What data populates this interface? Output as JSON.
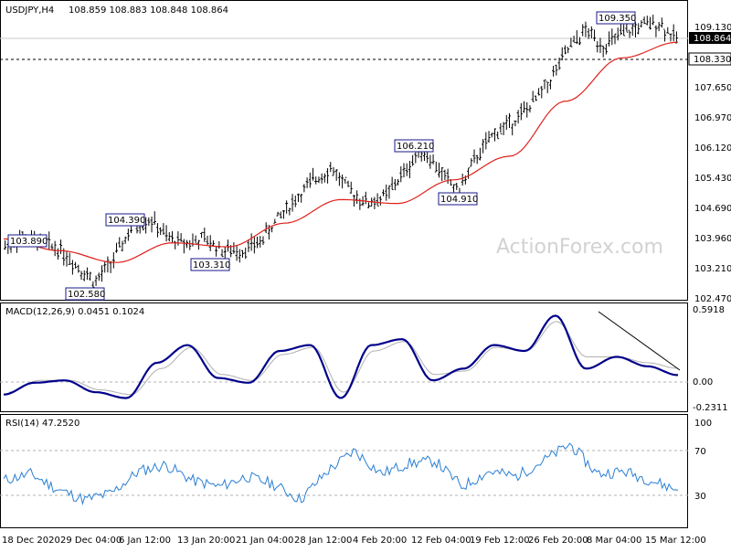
{
  "header": {
    "symbol": "USDJPY,H4",
    "ohlc": "108.859 108.883 108.848 108.864"
  },
  "watermark": "ActionForex.com",
  "colors": {
    "candle": "#000000",
    "ma": "#e0201b",
    "macd_line": "#00008b",
    "macd_signal": "#b0b0b0",
    "rsi": "#2a7fd4",
    "label_border": "#1a1a8c",
    "grid": "#c8c8c8",
    "axis_text": "#000000",
    "watermark": "#d2d2d2"
  },
  "price_panel": {
    "y_ticks": [
      "109.130",
      "107.650",
      "106.970",
      "106.120",
      "105.430",
      "104.690",
      "103.960",
      "103.210",
      "102.470"
    ],
    "y_tick_values": [
      109.13,
      107.65,
      106.97,
      106.12,
      105.43,
      104.69,
      103.96,
      103.21,
      102.47
    ],
    "current_price_label": "108.864",
    "current_price": 108.864,
    "dashed_level_label": "108.330",
    "dashed_level": 108.33,
    "annotations": [
      {
        "text": "103.890",
        "value": 103.89,
        "date": "18 Dec 2020"
      },
      {
        "text": "102.580",
        "value": 102.58,
        "date": "1 Jan"
      },
      {
        "text": "104.390",
        "value": 104.39,
        "date": "6 Jan"
      },
      {
        "text": "103.310",
        "value": 103.31,
        "date": "20 Jan"
      },
      {
        "text": "106.210",
        "value": 106.21,
        "date": "12 Feb"
      },
      {
        "text": "104.910",
        "value": 104.91,
        "date": "19 Feb"
      },
      {
        "text": "109.350",
        "value": 109.35,
        "date": "8 Mar"
      }
    ]
  },
  "macd_panel": {
    "label": "MACD(12,26,9) 0.0451 0.1024",
    "y_ticks": [
      "0.5918",
      "0.00",
      "-0.2311"
    ],
    "y_tick_values": [
      0.5918,
      0.0,
      -0.2311
    ],
    "top_right_label": "0.5918",
    "zero_label": "0.00",
    "bottom_label": "-0.2311"
  },
  "rsi_panel": {
    "label": "RSI(14) 47.2520",
    "y_ticks": [
      "100",
      "70",
      "30"
    ],
    "y_tick_values": [
      100,
      70,
      30
    ]
  },
  "x_axis": {
    "labels": [
      "18 Dec 2020",
      "29 Dec 04:00",
      "6 Jan 12:00",
      "13 Jan 20:00",
      "21 Jan 04:00",
      "28 Jan 12:00",
      "4 Feb 20:00",
      "12 Feb 04:00",
      "19 Feb 12:00",
      "26 Feb 20:00",
      "8 Mar 04:00",
      "15 Mar 12:00"
    ]
  },
  "chart_data": {
    "type": "line",
    "title": "USDJPY,H4",
    "series": [
      {
        "name": "USDJPY",
        "x": [
          "18 Dec 2020",
          "22 Dec",
          "24 Dec",
          "29 Dec 04:00",
          "31 Dec",
          "1 Jan",
          "6 Jan 12:00",
          "8 Jan",
          "11 Jan",
          "13 Jan 20:00",
          "15 Jan",
          "18 Jan",
          "20 Jan",
          "21 Jan 04:00",
          "25 Jan",
          "28 Jan 12:00",
          "1 Feb",
          "3 Feb",
          "4 Feb 20:00",
          "8 Feb",
          "10 Feb",
          "12 Feb 04:00",
          "15 Feb",
          "17 Feb",
          "19 Feb 12:00",
          "22 Feb",
          "24 Feb",
          "26 Feb 20:00",
          "1 Mar",
          "3 Mar",
          "5 Mar",
          "8 Mar 04:00",
          "9 Mar",
          "11 Mar",
          "12 Mar",
          "15 Mar 12:00",
          "16 Mar",
          "17 Mar"
        ],
        "values": [
          103.6,
          103.85,
          103.7,
          103.55,
          103.1,
          102.7,
          103.3,
          104.1,
          104.3,
          103.8,
          103.7,
          103.8,
          103.5,
          103.5,
          103.7,
          104.3,
          104.8,
          105.3,
          105.6,
          105.0,
          104.7,
          104.9,
          105.5,
          106.1,
          105.5,
          105.0,
          105.9,
          106.5,
          106.8,
          107.2,
          107.8,
          108.6,
          109.1,
          108.7,
          109.0,
          109.2,
          109.3,
          108.864
        ]
      },
      {
        "name": "MA",
        "x": [
          "18 Dec 2020",
          "29 Dec 04:00",
          "6 Jan 12:00",
          "13 Jan 20:00",
          "21 Jan 04:00",
          "28 Jan 12:00",
          "4 Feb 20:00",
          "12 Feb 04:00",
          "19 Feb 12:00",
          "26 Feb 20:00",
          "8 Mar 04:00",
          "15 Mar 12:00",
          "17 Mar"
        ],
        "values": [
          103.8,
          103.5,
          103.2,
          103.7,
          103.6,
          104.2,
          104.8,
          104.7,
          105.3,
          105.9,
          107.3,
          108.4,
          108.8
        ]
      }
    ],
    "macd": {
      "main": [
        -0.12,
        -0.02,
        0.0,
        -0.1,
        -0.15,
        0.15,
        0.3,
        0.02,
        -0.02,
        0.25,
        0.3,
        -0.15,
        0.3,
        0.35,
        0.0,
        0.1,
        0.3,
        0.25,
        0.55,
        0.1,
        0.2,
        0.12,
        0.0451
      ],
      "signal": [
        -0.1,
        0.0,
        0.0,
        -0.08,
        -0.12,
        0.1,
        0.28,
        0.05,
        0.0,
        0.22,
        0.28,
        -0.1,
        0.25,
        0.33,
        0.05,
        0.08,
        0.28,
        0.25,
        0.5,
        0.2,
        0.2,
        0.15,
        0.1024
      ],
      "ylim": [
        -0.2311,
        0.5918
      ]
    },
    "rsi": {
      "values": [
        55,
        60,
        48,
        40,
        45,
        62,
        67,
        55,
        50,
        58,
        52,
        40,
        62,
        78,
        60,
        68,
        70,
        50,
        62,
        58,
        70,
        83,
        60,
        62,
        55,
        47.252
      ],
      "ylim": [
        20,
        100
      ]
    },
    "ylim": [
      102.3,
      109.5
    ],
    "grid": false,
    "legend": "none"
  }
}
